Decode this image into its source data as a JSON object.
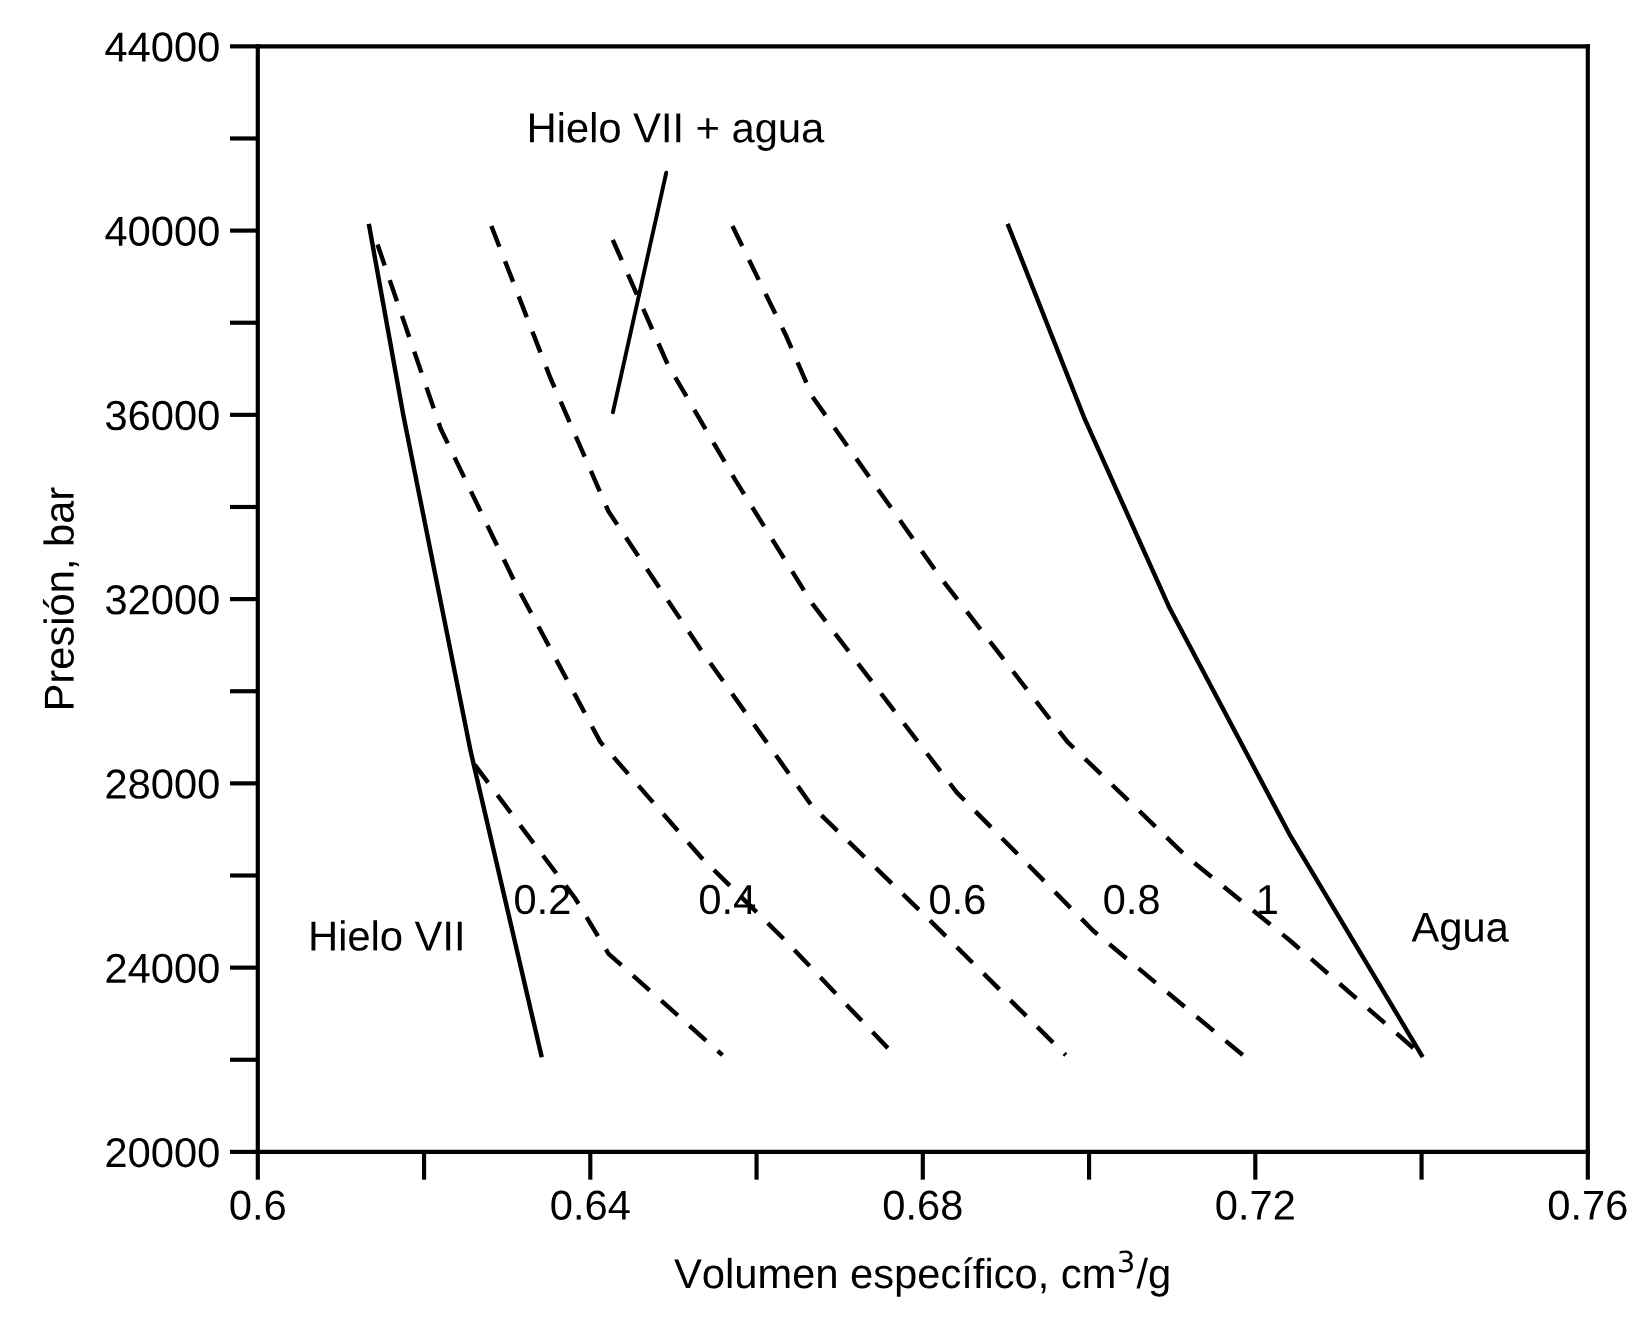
{
  "chart_data": {
    "type": "line",
    "xlabel": "Volumen específico, cm$^{3}$/g",
    "ylabel": "Presión, bar",
    "xlim": [
      0.6,
      0.76
    ],
    "ylim": [
      20000,
      44000
    ],
    "xticks": [
      0.6,
      {
        "value": 0.62,
        "label": null
      },
      0.64,
      {
        "value": 0.66,
        "label": null
      },
      0.68,
      {
        "value": 0.7,
        "label": null
      },
      0.72,
      {
        "value": 0.74,
        "label": null
      },
      0.76
    ],
    "yticks": [
      20000,
      {
        "value": 22000,
        "label": null
      },
      24000,
      {
        "value": 26000,
        "label": null
      },
      28000,
      {
        "value": 30000,
        "label": null
      },
      32000,
      {
        "value": 34000,
        "label": null
      },
      36000,
      {
        "value": 38000,
        "label": null
      },
      40000,
      {
        "value": 42000,
        "label": null
      },
      44000
    ],
    "grid": false,
    "legend": false,
    "marker": "none",
    "series": [
      {
        "name": "Hielo VII",
        "color": "#000000",
        "line_style": "solid",
        "x": [
          0.6134,
          0.6175,
          0.6256,
          0.6341
        ],
        "values": [
          40100,
          36000,
          28700,
          22100
        ]
      },
      {
        "name": "0.2",
        "color": "#000000",
        "line_style": "dashed",
        "x": [
          0.6261,
          0.6382,
          0.6422,
          0.6559
        ],
        "values": [
          28400,
          25500,
          24300,
          22100
        ]
      },
      {
        "name": "0.4",
        "color": "#000000",
        "line_style": "dashed",
        "x": [
          0.6144,
          0.622,
          0.6311,
          0.6412,
          0.6533,
          0.6634,
          0.6766
        ],
        "values": [
          39700,
          35700,
          32300,
          28900,
          26400,
          24600,
          22100
        ]
      },
      {
        "name": "0.6",
        "color": "#000000",
        "line_style": "dashed",
        "x": [
          0.6281,
          0.6352,
          0.6422,
          0.6533,
          0.6667,
          0.681,
          0.6972
        ],
        "values": [
          40100,
          36800,
          33900,
          30900,
          27500,
          25000,
          22100
        ]
      },
      {
        "name": "0.8",
        "color": "#000000",
        "line_style": "dashed",
        "x": [
          0.6427,
          0.6493,
          0.6574,
          0.6667,
          0.6841,
          0.7005,
          0.7185
        ],
        "values": [
          39800,
          37100,
          34600,
          31900,
          27800,
          24800,
          22100
        ]
      },
      {
        "name": "1",
        "color": "#000000",
        "line_style": "dashed",
        "x": [
          0.6571,
          0.6636,
          0.6667,
          0.682,
          0.6974,
          0.7118,
          0.7241,
          0.74
        ],
        "values": [
          40100,
          37700,
          36400,
          32500,
          28900,
          26400,
          24600,
          22100
        ]
      },
      {
        "name": "Agua",
        "color": "#000000",
        "line_style": "solid",
        "x": [
          0.6903,
          0.6995,
          0.7097,
          0.7241,
          0.74
        ],
        "values": [
          40100,
          35900,
          31800,
          26900,
          22100
        ]
      }
    ],
    "annotations": [
      "Hielo VII + agua"
    ]
  }
}
